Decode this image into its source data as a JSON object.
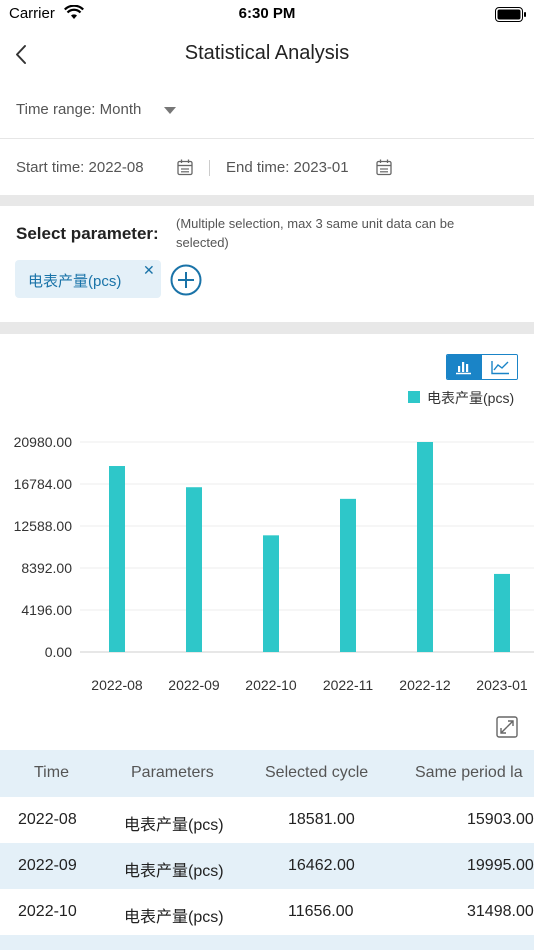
{
  "status_bar": {
    "carrier": "Carrier",
    "time": "6:30 PM"
  },
  "nav": {
    "title": "Statistical Analysis"
  },
  "filters": {
    "time_range_label": "Time range:",
    "time_range_value": "Month",
    "start_label": "Start time:",
    "start_value": "2022-08",
    "end_label": "End time:",
    "end_value": "2023-01"
  },
  "params": {
    "label": "Select parameter:",
    "hint": "(Multiple selection, max 3 same unit data can be selected)",
    "chips": [
      {
        "label": "电表产量(pcs)"
      }
    ]
  },
  "colors": {
    "accent": "#1a84c7",
    "bar": "#2ec7c9",
    "row_alt": "#e4f0f8"
  },
  "chart_data": {
    "type": "bar",
    "categories": [
      "2022-08",
      "2022-09",
      "2022-10",
      "2022-11",
      "2022-12",
      "2023-01"
    ],
    "series": [
      {
        "name": "电表产量(pcs)",
        "values": [
          18581,
          16462,
          11656,
          15300,
          20980,
          7800
        ]
      }
    ],
    "yticks": [
      "0.00",
      "4196.00",
      "8392.00",
      "12588.00",
      "16784.00",
      "20980.00"
    ],
    "ylim": [
      0,
      20980
    ],
    "grid": true,
    "legend": "top-right"
  },
  "table": {
    "headers": [
      "Time",
      "Parameters",
      "Selected cycle",
      "Same period la"
    ],
    "rows": [
      [
        "2022-08",
        "电表产量(pcs)",
        "18581.00",
        "15903.00"
      ],
      [
        "2022-09",
        "电表产量(pcs)",
        "16462.00",
        "19995.00"
      ],
      [
        "2022-10",
        "电表产量(pcs)",
        "11656.00",
        "31498.00"
      ]
    ]
  }
}
